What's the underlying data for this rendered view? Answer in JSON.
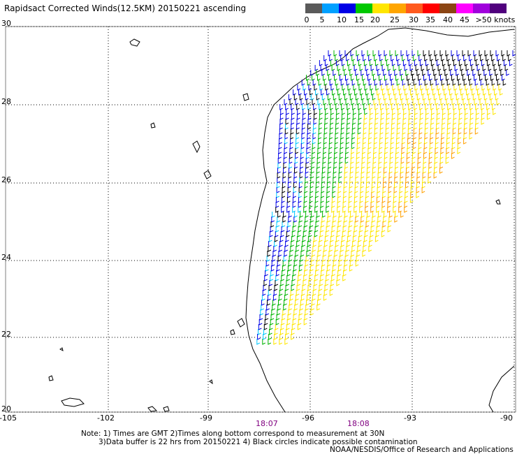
{
  "title": "Rapidsact Corrected Winds(12.5KM) 20150221 ascending",
  "legend": {
    "colors": [
      "#5a5a5a",
      "#00d7ff",
      "#00a0ff",
      "#0000e6",
      "#00c800",
      "#ffe600",
      "#ffa500",
      "#ff5a1e",
      "#ff0000",
      "#8b4513",
      "#ff00ff",
      "#a000dc",
      "#50007d"
    ],
    "labels": [
      "0",
      "5",
      "10",
      "15",
      "20",
      "25",
      "30",
      "35",
      "40",
      "45",
      ">50 knots"
    ]
  },
  "axes": {
    "lon_labels": [
      "-105",
      "-102",
      "-99",
      "-96",
      "-93",
      "-90"
    ],
    "lat_labels": [
      "30",
      "28",
      "26",
      "24",
      "22",
      "20"
    ]
  },
  "times": [
    "18:07",
    "18:08"
  ],
  "notes": {
    "line1": "Note: 1) Times are GMT 2)Times along bottom correspond to measurement at 30N",
    "line2": "3)Data buffer is 22 hrs from 20150221 4) Black circles indicate possible contamination",
    "line3": "NOAA/NESDIS/Office of Research and Applications"
  }
}
